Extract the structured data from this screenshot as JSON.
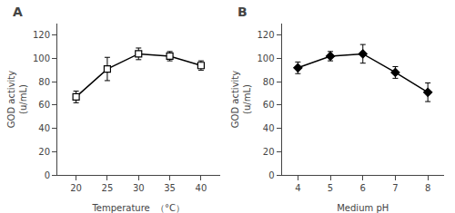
{
  "chart_data": [
    {
      "type": "line",
      "title": "A",
      "x": [
        20,
        25,
        30,
        35,
        40
      ],
      "values": [
        67,
        91,
        104,
        102,
        94
      ],
      "yerr": [
        5,
        10,
        5,
        4,
        4
      ],
      "xlabel": "Temperature  （°C）",
      "ylabel": "GOD activity\n(u/mL)",
      "xlim": [
        17,
        43
      ],
      "ylim": [
        0,
        130
      ],
      "xticks": [
        20,
        25,
        30,
        35,
        40
      ],
      "yticks": [
        0,
        20,
        40,
        60,
        80,
        100,
        120
      ],
      "marker": "square-open",
      "color": "black",
      "grid": false
    },
    {
      "type": "line",
      "title": "B",
      "x": [
        4,
        5,
        6,
        7,
        8
      ],
      "values": [
        92,
        102,
        104,
        88,
        71
      ],
      "yerr": [
        5,
        4,
        8,
        5,
        8
      ],
      "xlabel": "Medium pH",
      "ylabel": "GOD activity\n(u/mL)",
      "xlim": [
        3.5,
        8.5
      ],
      "ylim": [
        0,
        130
      ],
      "xticks": [
        4,
        5,
        6,
        7,
        8
      ],
      "yticks": [
        0,
        20,
        40,
        60,
        80,
        100,
        120
      ],
      "marker": "diamond",
      "color": "black",
      "grid": false
    }
  ]
}
